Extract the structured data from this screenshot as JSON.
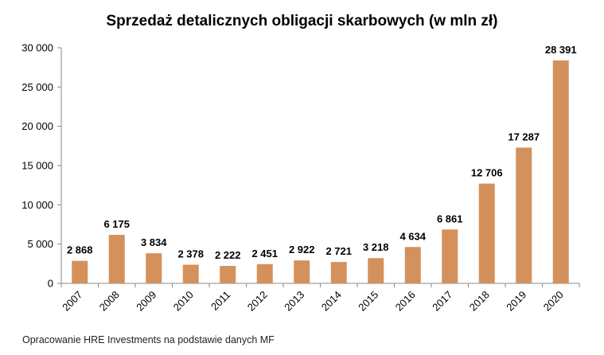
{
  "chart_data": {
    "type": "bar",
    "title": "Sprzedaż detalicznych obligacji skarbowych (w mln zł)",
    "categories": [
      "2007",
      "2008",
      "2009",
      "2010",
      "2011",
      "2012",
      "2013",
      "2014",
      "2015",
      "2016",
      "2017",
      "2018",
      "2019",
      "2020"
    ],
    "values": [
      2868,
      6175,
      3834,
      2378,
      2222,
      2451,
      2922,
      2721,
      3218,
      4634,
      6861,
      12706,
      17287,
      28391
    ],
    "value_labels": [
      "2 868",
      "6 175",
      "3 834",
      "2 378",
      "2 222",
      "2 451",
      "2 922",
      "2 721",
      "3 218",
      "4 634",
      "6 861",
      "12 706",
      "17 287",
      "28 391"
    ],
    "ylim": [
      0,
      30000
    ],
    "yticks": [
      0,
      5000,
      10000,
      15000,
      20000,
      25000,
      30000
    ],
    "ytick_labels": [
      "0",
      "5 000",
      "10 000",
      "15 000",
      "20 000",
      "25 000",
      "30 000"
    ],
    "grid": false,
    "bar_color": "#d4915c",
    "xlabel": "",
    "ylabel": ""
  },
  "source_note": "Opracowanie HRE Investments na podstawie danych MF"
}
